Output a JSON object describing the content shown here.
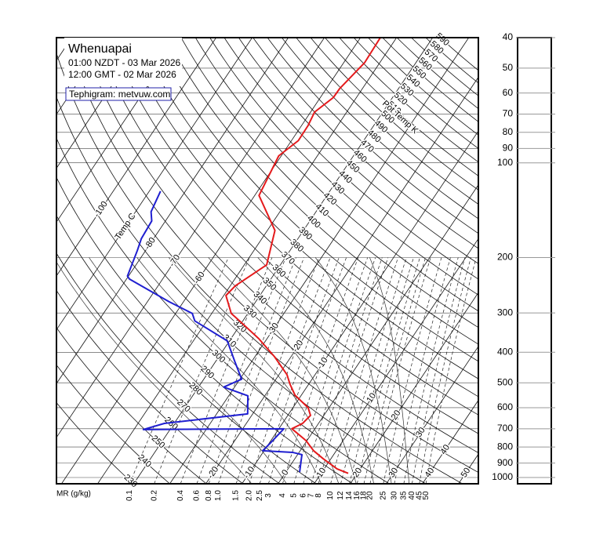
{
  "chart_data": {
    "type": "tephigram",
    "title": "Whenuapai",
    "subtitle_lines": [
      "01:00 NZDT - 03 Mar 2026",
      "12:00 GMT - 02 Mar 2026"
    ],
    "credit": "Tephigram: metvuw.com",
    "xlim": [
      -61.4,
      55.5
    ],
    "ylim": [
      1047,
      40
    ],
    "log_y": true,
    "pressure_ticks": [
      40,
      50,
      60,
      70,
      80,
      90,
      100,
      200,
      300,
      400,
      500,
      600,
      700,
      800,
      900,
      1000
    ],
    "temp_grid": [
      -150,
      -140,
      -130,
      -120,
      -110,
      -100,
      -90,
      -80,
      -70,
      -60,
      -50,
      -40,
      -30,
      -20,
      -10,
      0,
      10,
      20,
      30,
      40,
      50
    ],
    "temp_axis_label": "Temp C",
    "temp_labels_upper": [
      -100,
      -80,
      -70,
      -60
    ],
    "temp_labels_middle": [
      -30,
      -20,
      -10,
      10,
      20,
      30,
      40
    ],
    "temp_labels_bottom": [
      -20,
      -10,
      0,
      10,
      20,
      30,
      40,
      50
    ],
    "theta_axis_label": "Pot Temp K",
    "theta_ticks": [
      230,
      240,
      250,
      260,
      270,
      280,
      290,
      300,
      310,
      320,
      330,
      340,
      350,
      360,
      370,
      380,
      390,
      400,
      410,
      420,
      430,
      440,
      450,
      460,
      470,
      480,
      490,
      500,
      510,
      520,
      530,
      540,
      550,
      560,
      570,
      580,
      590
    ],
    "mr_axis_label": "MR (g/kg)",
    "mr_ticks": [
      0.1,
      0.2,
      0.4,
      0.6,
      0.8,
      {
        "value": 1,
        "label": "1.0"
      },
      1.5,
      {
        "value": 2,
        "label": "2.0"
      },
      2.5,
      3,
      4,
      5,
      6,
      7,
      8,
      10,
      12,
      14,
      16,
      18,
      20,
      25,
      30,
      35,
      40,
      45,
      50
    ],
    "sat_adiabats": [
      -10,
      0,
      10,
      15,
      20,
      25,
      30,
      35
    ],
    "series": [
      {
        "color": "#e41a1c",
        "p": [
          970,
          939,
          871,
          822,
          763,
          700,
          673,
          635,
          600,
          547,
          505,
          471,
          413,
          362,
          318,
          301,
          264,
          246,
          211,
          164,
          127,
          95,
          85,
          76,
          69,
          62,
          58,
          48,
          40
        ],
        "values": [
          17.5,
          13.6,
          7.8,
          3.7,
          -0.3,
          -6.4,
          -4.4,
          -3.7,
          -5.8,
          -11.8,
          -15.2,
          -17.8,
          -24.6,
          -32.3,
          -40.9,
          -44.6,
          -49.4,
          -48.6,
          -43.8,
          -47.9,
          -58.8,
          -60.7,
          -58.1,
          -58.2,
          -58.9,
          -56.4,
          -56.3,
          -54.2,
          -54.5
        ]
      },
      {
        "color": "#1f1fd0",
        "p": [
          961,
          846,
          832,
          822,
          777,
          700,
          704,
          673,
          628,
          550,
          516,
          487,
          430,
          368,
          318,
          301,
          276,
          234,
          229,
          190,
          174,
          153,
          143,
          123
        ],
        "values": [
          3.8,
          1.2,
          -1.8,
          -10.4,
          -9.7,
          -8.6,
          -47.4,
          -42.7,
          -21.4,
          -24.7,
          -33,
          -29.5,
          -34.5,
          -40.6,
          -53.3,
          -55.4,
          -64.1,
          -79.2,
          -80.3,
          -82.3,
          -83.4,
          -83.8,
          -85.7,
          -86.9
        ]
      }
    ]
  }
}
